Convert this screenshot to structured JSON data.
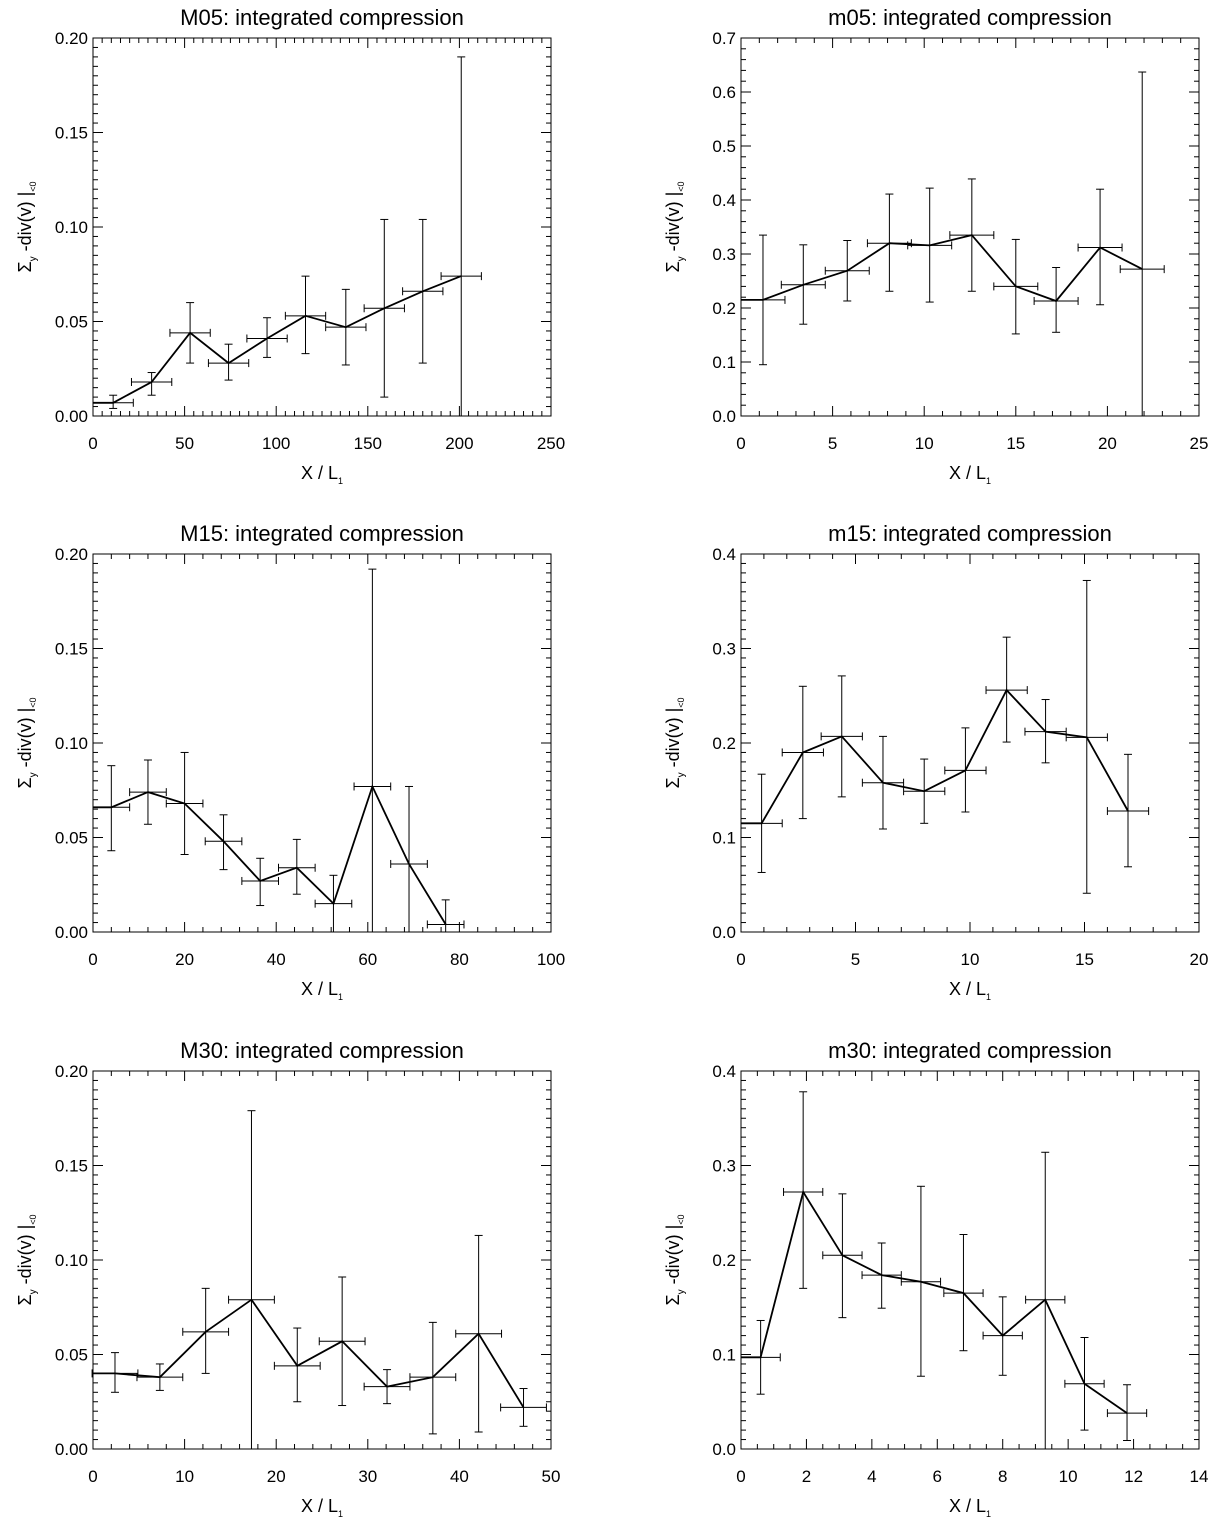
{
  "axis_labels": {
    "x_main": "X / L",
    "x_sub": "1",
    "y_sigma": "Σ",
    "y_sub": "y",
    "y_main": " -div(v) |",
    "y_tail": "<0"
  },
  "chart_data": [
    {
      "type": "line",
      "title": "M05: integrated compression",
      "xlim": [
        0,
        250
      ],
      "ylim": [
        0,
        0.2
      ],
      "xticks": [
        0,
        50,
        100,
        150,
        200,
        250
      ],
      "xtick_labels": [
        "0",
        "50",
        "100",
        "150",
        "200",
        "250"
      ],
      "yticks": [
        0,
        0.05,
        0.1,
        0.15,
        0.2
      ],
      "ytick_labels": [
        "0.00",
        "0.05",
        "0.10",
        "0.15",
        "0.20"
      ],
      "x_minor": 10,
      "y_minor": 10,
      "xerr": 11,
      "x": [
        11,
        32,
        53,
        74,
        95,
        116,
        138,
        159,
        180,
        201
      ],
      "y": [
        0.007,
        0.018,
        0.044,
        0.028,
        0.041,
        0.053,
        0.047,
        0.057,
        0.066,
        0.074
      ],
      "ylo": [
        0.004,
        0.011,
        0.028,
        0.019,
        0.031,
        0.033,
        0.027,
        0.01,
        0.028,
        0.0
      ],
      "yhi": [
        0.011,
        0.023,
        0.06,
        0.038,
        0.052,
        0.074,
        0.067,
        0.104,
        0.104,
        0.19
      ]
    },
    {
      "type": "line",
      "title": "m05: integrated compression",
      "xlim": [
        0,
        25
      ],
      "ylim": [
        0,
        0.7
      ],
      "xticks": [
        0,
        5,
        10,
        15,
        20,
        25
      ],
      "xtick_labels": [
        "0",
        "5",
        "10",
        "15",
        "20",
        "25"
      ],
      "yticks": [
        0,
        0.1,
        0.2,
        0.3,
        0.4,
        0.5,
        0.6,
        0.7
      ],
      "ytick_labels": [
        "0.0",
        "0.1",
        "0.2",
        "0.3",
        "0.4",
        "0.5",
        "0.6",
        "0.7"
      ],
      "x_minor": 5,
      "y_minor": 5,
      "xerr": 1.2,
      "x": [
        1.2,
        3.4,
        5.8,
        8.1,
        10.3,
        12.6,
        15.0,
        17.2,
        19.6,
        21.9
      ],
      "y": [
        0.215,
        0.243,
        0.269,
        0.32,
        0.316,
        0.335,
        0.24,
        0.213,
        0.312,
        0.272
      ],
      "ylo": [
        0.095,
        0.17,
        0.213,
        0.231,
        0.211,
        0.231,
        0.152,
        0.155,
        0.206,
        0.0
      ],
      "yhi": [
        0.335,
        0.317,
        0.325,
        0.411,
        0.422,
        0.439,
        0.327,
        0.275,
        0.42,
        0.637
      ]
    },
    {
      "type": "line",
      "title": "M15: integrated compression",
      "xlim": [
        0,
        100
      ],
      "ylim": [
        0,
        0.2
      ],
      "xticks": [
        0,
        20,
        40,
        60,
        80,
        100
      ],
      "xtick_labels": [
        "0",
        "20",
        "40",
        "60",
        "80",
        "100"
      ],
      "yticks": [
        0,
        0.05,
        0.1,
        0.15,
        0.2
      ],
      "ytick_labels": [
        "0.00",
        "0.05",
        "0.10",
        "0.15",
        "0.20"
      ],
      "x_minor": 5,
      "y_minor": 10,
      "xerr": 4,
      "x": [
        4,
        12,
        20,
        28.5,
        36.5,
        44.5,
        52.5,
        61,
        69,
        77
      ],
      "y": [
        0.066,
        0.074,
        0.068,
        0.048,
        0.027,
        0.034,
        0.015,
        0.077,
        0.036,
        0.004
      ],
      "ylo": [
        0.043,
        0.057,
        0.041,
        0.033,
        0.014,
        0.02,
        0.0,
        0.0,
        0.0,
        0.0
      ],
      "yhi": [
        0.088,
        0.091,
        0.095,
        0.062,
        0.039,
        0.049,
        0.03,
        0.192,
        0.077,
        0.017
      ]
    },
    {
      "type": "line",
      "title": "m15: integrated compression",
      "xlim": [
        0,
        20
      ],
      "ylim": [
        0,
        0.4
      ],
      "xticks": [
        0,
        5,
        10,
        15,
        20
      ],
      "xtick_labels": [
        "0",
        "5",
        "10",
        "15",
        "20"
      ],
      "yticks": [
        0,
        0.1,
        0.2,
        0.3,
        0.4
      ],
      "ytick_labels": [
        "0.0",
        "0.1",
        "0.2",
        "0.3",
        "0.4"
      ],
      "x_minor": 5,
      "y_minor": 10,
      "xerr": 0.9,
      "x": [
        0.9,
        2.7,
        4.4,
        6.2,
        8.0,
        9.8,
        11.6,
        13.3,
        15.1,
        16.9
      ],
      "y": [
        0.115,
        0.19,
        0.207,
        0.158,
        0.149,
        0.171,
        0.256,
        0.212,
        0.206,
        0.128
      ],
      "ylo": [
        0.063,
        0.12,
        0.143,
        0.109,
        0.115,
        0.127,
        0.201,
        0.179,
        0.041,
        0.069
      ],
      "yhi": [
        0.167,
        0.26,
        0.271,
        0.207,
        0.183,
        0.216,
        0.312,
        0.246,
        0.372,
        0.188
      ]
    },
    {
      "type": "line",
      "title": "M30: integrated compression",
      "xlim": [
        0,
        50
      ],
      "ylim": [
        0,
        0.2
      ],
      "xticks": [
        0,
        10,
        20,
        30,
        40,
        50
      ],
      "xtick_labels": [
        "0",
        "10",
        "20",
        "30",
        "40",
        "50"
      ],
      "yticks": [
        0,
        0.05,
        0.1,
        0.15,
        0.2
      ],
      "ytick_labels": [
        "0.00",
        "0.05",
        "0.10",
        "0.15",
        "0.20"
      ],
      "x_minor": 5,
      "y_minor": 10,
      "xerr": 2.5,
      "x": [
        2.4,
        7.3,
        12.3,
        17.3,
        22.3,
        27.2,
        32.1,
        37.1,
        42.1,
        47.0
      ],
      "y": [
        0.04,
        0.038,
        0.062,
        0.079,
        0.044,
        0.057,
        0.033,
        0.038,
        0.061,
        0.022
      ],
      "ylo": [
        0.03,
        0.031,
        0.04,
        0.0,
        0.025,
        0.023,
        0.024,
        0.008,
        0.009,
        0.012
      ],
      "yhi": [
        0.051,
        0.045,
        0.085,
        0.179,
        0.064,
        0.091,
        0.042,
        0.067,
        0.113,
        0.032
      ]
    },
    {
      "type": "line",
      "title": "m30: integrated compression",
      "xlim": [
        0,
        14
      ],
      "ylim": [
        0,
        0.4
      ],
      "xticks": [
        0,
        2,
        4,
        6,
        8,
        10,
        12,
        14
      ],
      "xtick_labels": [
        "0",
        "2",
        "4",
        "6",
        "8",
        "10",
        "12",
        "14"
      ],
      "yticks": [
        0,
        0.1,
        0.2,
        0.3,
        0.4
      ],
      "ytick_labels": [
        "0.0",
        "0.1",
        "0.2",
        "0.3",
        "0.4"
      ],
      "x_minor": 4,
      "y_minor": 10,
      "xerr": 0.6,
      "x": [
        0.6,
        1.9,
        3.1,
        4.3,
        5.5,
        6.8,
        8.0,
        9.3,
        10.5,
        11.8
      ],
      "y": [
        0.097,
        0.272,
        0.205,
        0.184,
        0.177,
        0.165,
        0.12,
        0.158,
        0.069,
        0.038
      ],
      "ylo": [
        0.058,
        0.17,
        0.139,
        0.149,
        0.077,
        0.104,
        0.078,
        0.0,
        0.02,
        0.009
      ],
      "yhi": [
        0.136,
        0.378,
        0.27,
        0.218,
        0.278,
        0.227,
        0.161,
        0.314,
        0.118,
        0.068
      ]
    }
  ]
}
